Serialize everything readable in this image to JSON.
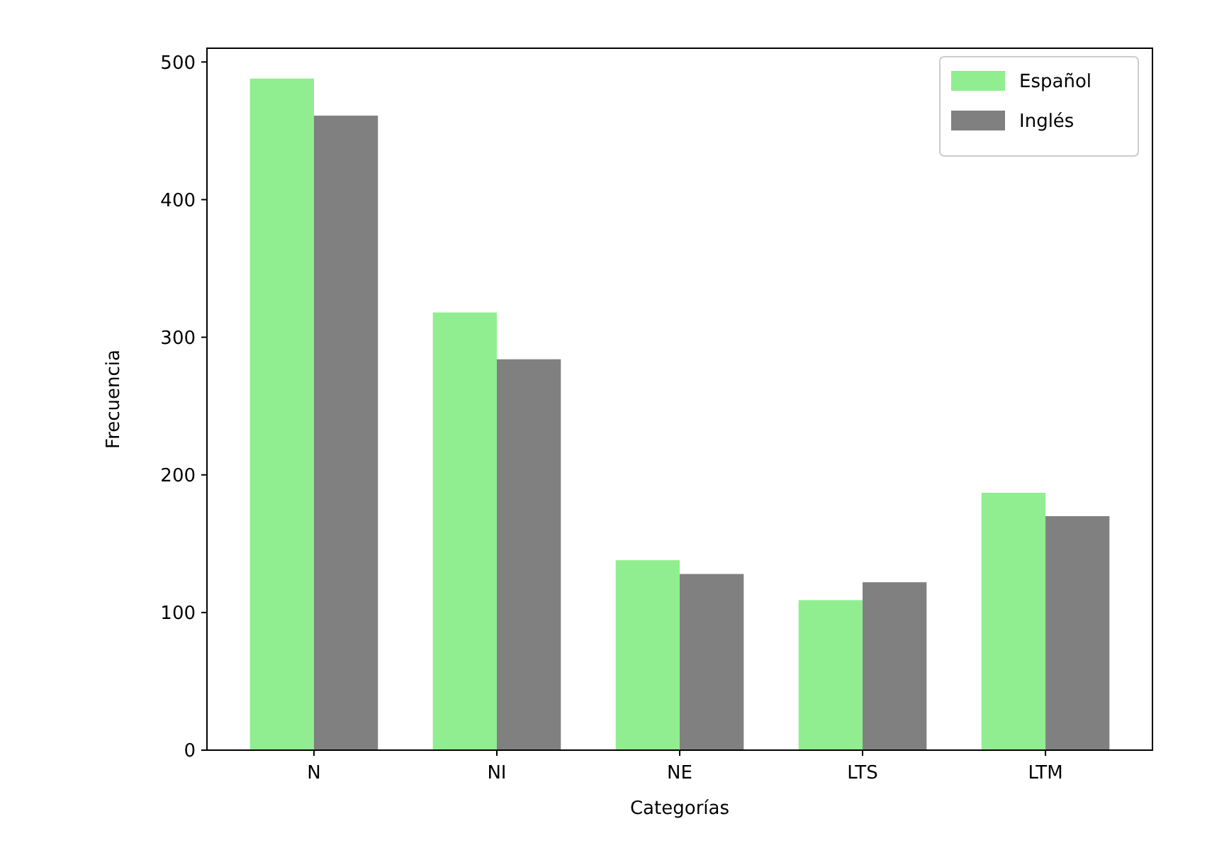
{
  "chart_data": {
    "type": "bar",
    "xlabel": "Categorías",
    "ylabel": "Frecuencia",
    "categories": [
      "N",
      "NI",
      "NE",
      "LTS",
      "LTM"
    ],
    "series": [
      {
        "name": "Español",
        "color": "#90ee90",
        "values": [
          488,
          318,
          138,
          109,
          187
        ]
      },
      {
        "name": "Inglés",
        "color": "#808080",
        "values": [
          461,
          284,
          128,
          122,
          170
        ]
      }
    ],
    "ylim": [
      0,
      510
    ],
    "yticks": [
      0,
      100,
      200,
      300,
      400,
      500
    ],
    "legend": "top right"
  }
}
